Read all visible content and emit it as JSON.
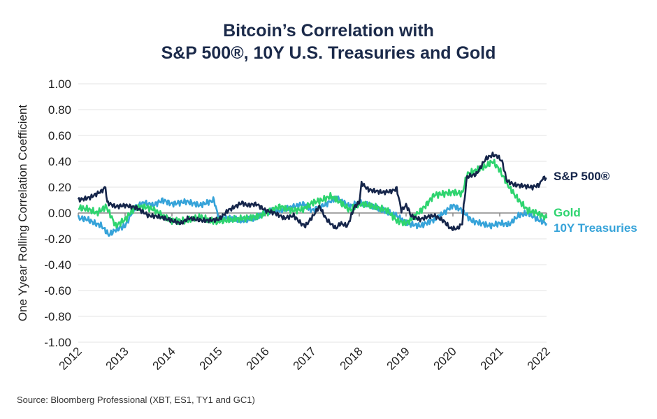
{
  "chart_data": {
    "type": "line",
    "title_line1": "Bitcoin’s Correlation with",
    "title_line2": "S&P 500®, 10Y U.S. Treasuries and Gold",
    "ylabel": "One Yyear Rolling Correlation Coefficient",
    "ylim": [
      -1.0,
      1.0
    ],
    "xlim": [
      2012,
      2022
    ],
    "y_ticks": [
      "1.00",
      "0.80",
      "0.60",
      "0.40",
      "0.20",
      "0.00",
      "-0.20",
      "-0.40",
      "-0.60",
      "-0.80",
      "-1.00"
    ],
    "x_ticks": [
      "2012",
      "2013",
      "2014",
      "2015",
      "2016",
      "2017",
      "2018",
      "2019",
      "2020",
      "2021",
      "2022"
    ],
    "grid": "horizontal",
    "colors": {
      "sp500": "#15254a",
      "gold": "#2ed46f",
      "treasuries": "#36a3d9",
      "zero_line": "#888888"
    },
    "series": [
      {
        "name": "S&P 500®",
        "key": "sp500",
        "x": [
          2012.0,
          2012.25,
          2012.5,
          2012.58,
          2012.62,
          2012.8,
          2013.0,
          2013.25,
          2013.5,
          2013.75,
          2014.0,
          2014.2,
          2014.35,
          2014.5,
          2014.7,
          2015.0,
          2015.2,
          2015.35,
          2015.5,
          2015.6,
          2015.8,
          2016.0,
          2016.2,
          2016.4,
          2016.6,
          2016.75,
          2016.85,
          2017.0,
          2017.15,
          2017.3,
          2017.5,
          2017.6,
          2017.75,
          2017.9,
          2018.0,
          2018.05,
          2018.2,
          2018.5,
          2018.7,
          2018.8,
          2018.9,
          2019.0,
          2019.05,
          2019.1,
          2019.3,
          2019.45,
          2019.6,
          2019.8,
          2019.95,
          2020.1,
          2020.2,
          2020.23,
          2020.3,
          2020.5,
          2020.7,
          2020.85,
          2020.95,
          2021.05,
          2021.15,
          2021.3,
          2021.5,
          2021.7,
          2021.85,
          2021.92,
          2022.0
        ],
        "values": [
          0.1,
          0.12,
          0.17,
          0.2,
          0.08,
          0.05,
          0.06,
          0.04,
          -0.02,
          -0.03,
          -0.06,
          -0.08,
          -0.04,
          -0.05,
          -0.06,
          -0.05,
          0.02,
          0.05,
          0.08,
          0.06,
          0.07,
          0.02,
          0.0,
          -0.04,
          -0.02,
          -0.08,
          -0.1,
          -0.03,
          0.05,
          -0.05,
          -0.12,
          -0.08,
          -0.1,
          0.05,
          0.08,
          0.23,
          0.18,
          0.16,
          0.17,
          0.19,
          0.02,
          0.06,
          0.03,
          -0.02,
          -0.05,
          -0.03,
          -0.02,
          -0.06,
          -0.12,
          -0.12,
          -0.08,
          0.05,
          0.28,
          0.3,
          0.42,
          0.45,
          0.44,
          0.4,
          0.25,
          0.22,
          0.21,
          0.2,
          0.22,
          0.27,
          0.27
        ]
      },
      {
        "name": "Gold",
        "key": "gold",
        "x": [
          2012.0,
          2012.2,
          2012.4,
          2012.6,
          2012.8,
          2013.0,
          2013.2,
          2013.4,
          2013.6,
          2013.8,
          2014.0,
          2014.3,
          2014.6,
          2014.9,
          2015.1,
          2015.3,
          2015.6,
          2015.8,
          2016.0,
          2016.3,
          2016.6,
          2016.8,
          2017.0,
          2017.2,
          2017.4,
          2017.6,
          2017.8,
          2018.0,
          2018.2,
          2018.4,
          2018.6,
          2018.8,
          2019.0,
          2019.2,
          2019.4,
          2019.6,
          2019.8,
          2020.0,
          2020.2,
          2020.3,
          2020.5,
          2020.7,
          2020.85,
          2021.0,
          2021.2,
          2021.4,
          2021.6,
          2021.8,
          2022.0
        ],
        "values": [
          0.04,
          0.03,
          0.0,
          0.05,
          -0.1,
          -0.05,
          0.04,
          0.05,
          0.03,
          -0.02,
          -0.06,
          -0.06,
          -0.03,
          -0.07,
          -0.06,
          -0.05,
          -0.04,
          -0.03,
          0.0,
          0.05,
          0.02,
          0.03,
          0.08,
          0.1,
          0.13,
          0.08,
          0.02,
          0.07,
          0.06,
          0.04,
          0.02,
          -0.06,
          -0.08,
          -0.02,
          0.05,
          0.14,
          0.15,
          0.16,
          0.15,
          0.3,
          0.33,
          0.36,
          0.4,
          0.33,
          0.2,
          0.1,
          0.02,
          0.0,
          -0.04
        ]
      },
      {
        "name": "10Y Treasuries",
        "key": "treasuries",
        "x": [
          2012.0,
          2012.2,
          2012.35,
          2012.5,
          2012.65,
          2012.8,
          2013.0,
          2013.2,
          2013.4,
          2013.6,
          2013.8,
          2014.0,
          2014.3,
          2014.6,
          2014.9,
          2015.0,
          2015.2,
          2015.5,
          2015.8,
          2016.0,
          2016.3,
          2016.6,
          2016.8,
          2017.0,
          2017.3,
          2017.5,
          2017.8,
          2018.0,
          2018.2,
          2018.5,
          2018.8,
          2019.0,
          2019.3,
          2019.6,
          2019.8,
          2020.0,
          2020.2,
          2020.4,
          2020.6,
          2020.8,
          2021.0,
          2021.2,
          2021.4,
          2021.6,
          2021.8,
          2022.0
        ],
        "values": [
          -0.04,
          -0.05,
          -0.08,
          -0.1,
          -0.17,
          -0.13,
          -0.1,
          0.04,
          0.08,
          0.06,
          0.1,
          0.07,
          0.09,
          0.06,
          0.1,
          -0.05,
          -0.04,
          -0.06,
          -0.04,
          0.01,
          0.02,
          0.05,
          0.07,
          0.02,
          0.07,
          0.12,
          0.05,
          0.08,
          0.06,
          0.02,
          -0.02,
          -0.08,
          -0.1,
          -0.05,
          0.0,
          0.06,
          0.02,
          -0.06,
          -0.08,
          -0.1,
          -0.08,
          -0.09,
          -0.02,
          0.0,
          -0.05,
          -0.08
        ]
      }
    ],
    "source": "Source: Bloomberg Professional (XBT, ES1, TY1 and GC1)"
  }
}
